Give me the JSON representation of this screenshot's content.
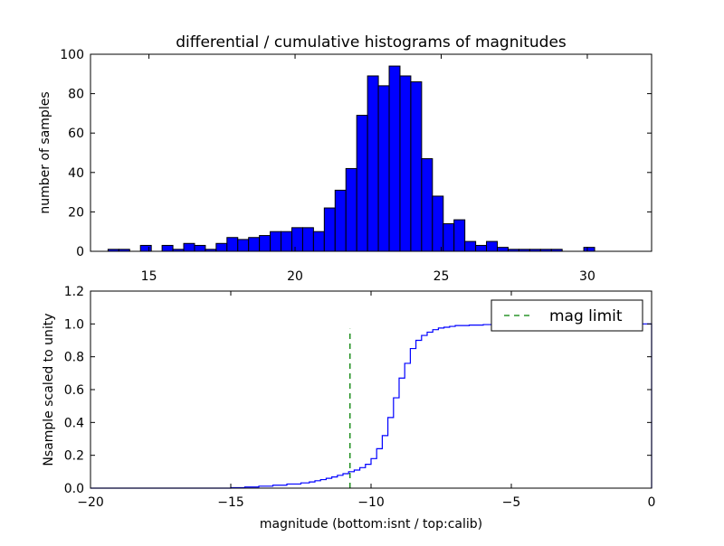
{
  "chart_data": [
    {
      "type": "bar",
      "title": "differential / cumulative histograms of magnitudes",
      "xlabel": "",
      "ylabel": "number of samples",
      "xlim": [
        13.0,
        32.2
      ],
      "ylim": [
        0,
        100
      ],
      "x_ticks": [
        15,
        20,
        25,
        30
      ],
      "y_ticks": [
        0,
        20,
        40,
        60,
        80,
        100
      ],
      "x_tick_labels": [
        "15",
        "20",
        "25",
        "30"
      ],
      "y_tick_labels": [
        "0",
        "20",
        "40",
        "60",
        "80",
        "100"
      ],
      "bar_color": "#0000ff",
      "bin_width": 0.37,
      "bins": [
        {
          "x": 13.6,
          "value": 1
        },
        {
          "x": 13.97,
          "value": 1
        },
        {
          "x": 14.71,
          "value": 3
        },
        {
          "x": 15.45,
          "value": 3
        },
        {
          "x": 15.82,
          "value": 1
        },
        {
          "x": 16.19,
          "value": 4
        },
        {
          "x": 16.56,
          "value": 3
        },
        {
          "x": 16.93,
          "value": 1
        },
        {
          "x": 17.3,
          "value": 4
        },
        {
          "x": 17.67,
          "value": 7
        },
        {
          "x": 18.04,
          "value": 6
        },
        {
          "x": 18.41,
          "value": 7
        },
        {
          "x": 18.78,
          "value": 8
        },
        {
          "x": 19.15,
          "value": 10
        },
        {
          "x": 19.52,
          "value": 10
        },
        {
          "x": 19.89,
          "value": 12
        },
        {
          "x": 20.26,
          "value": 12
        },
        {
          "x": 20.63,
          "value": 10
        },
        {
          "x": 21.0,
          "value": 22
        },
        {
          "x": 21.37,
          "value": 31
        },
        {
          "x": 21.74,
          "value": 42
        },
        {
          "x": 22.11,
          "value": 69
        },
        {
          "x": 22.48,
          "value": 89
        },
        {
          "x": 22.85,
          "value": 84
        },
        {
          "x": 23.22,
          "value": 94
        },
        {
          "x": 23.59,
          "value": 89
        },
        {
          "x": 23.96,
          "value": 86
        },
        {
          "x": 24.33,
          "value": 47
        },
        {
          "x": 24.7,
          "value": 28
        },
        {
          "x": 25.07,
          "value": 14
        },
        {
          "x": 25.44,
          "value": 16
        },
        {
          "x": 25.81,
          "value": 5
        },
        {
          "x": 26.18,
          "value": 3
        },
        {
          "x": 26.55,
          "value": 5
        },
        {
          "x": 26.92,
          "value": 2
        },
        {
          "x": 27.29,
          "value": 1
        },
        {
          "x": 27.66,
          "value": 1
        },
        {
          "x": 28.03,
          "value": 1
        },
        {
          "x": 28.4,
          "value": 1
        },
        {
          "x": 28.77,
          "value": 1
        },
        {
          "x": 29.88,
          "value": 2
        }
      ]
    },
    {
      "type": "line",
      "title": "",
      "xlabel": "magnitude (bottom:isnt / top:calib)",
      "ylabel": "Nsample scaled to unity",
      "xlim": [
        -20,
        0
      ],
      "ylim": [
        0.0,
        1.2
      ],
      "x_ticks": [
        -20,
        -15,
        -10,
        -5,
        0
      ],
      "y_ticks": [
        0.0,
        0.2,
        0.4,
        0.6,
        0.8,
        1.0,
        1.2
      ],
      "x_tick_labels": [
        "−20",
        "−15",
        "−10",
        "−5",
        "0"
      ],
      "y_tick_labels": [
        "0.0",
        "0.2",
        "0.4",
        "0.6",
        "0.8",
        "1.0",
        "1.2"
      ],
      "legend_position": "top-right",
      "series": [
        {
          "type": "step",
          "color": "#0000ff",
          "x": [
            -20,
            -15,
            -14.5,
            -14,
            -13.5,
            -13,
            -12.5,
            -12.2,
            -12,
            -11.8,
            -11.6,
            -11.4,
            -11.2,
            -11,
            -10.8,
            -10.6,
            -10.4,
            -10.2,
            -10,
            -9.8,
            -9.6,
            -9.4,
            -9.2,
            -9,
            -8.8,
            -8.6,
            -8.4,
            -8.2,
            -8,
            -7.8,
            -7.6,
            -7.4,
            -7.2,
            -7,
            -6.5,
            -6,
            -5.5,
            -5,
            -4,
            -3,
            0
          ],
          "y": [
            0.0,
            0.003,
            0.007,
            0.012,
            0.018,
            0.025,
            0.032,
            0.038,
            0.045,
            0.052,
            0.06,
            0.068,
            0.078,
            0.088,
            0.1,
            0.11,
            0.125,
            0.145,
            0.18,
            0.24,
            0.32,
            0.43,
            0.55,
            0.67,
            0.76,
            0.85,
            0.9,
            0.93,
            0.95,
            0.965,
            0.975,
            0.98,
            0.985,
            0.99,
            0.993,
            0.996,
            0.998,
            1.0,
            1.0,
            1.0,
            1.0
          ]
        },
        {
          "name": "mag limit",
          "type": "vline",
          "style": "dashed",
          "color": "#008000",
          "x": -10.75,
          "y_range": [
            0.0,
            0.97
          ]
        }
      ]
    }
  ]
}
